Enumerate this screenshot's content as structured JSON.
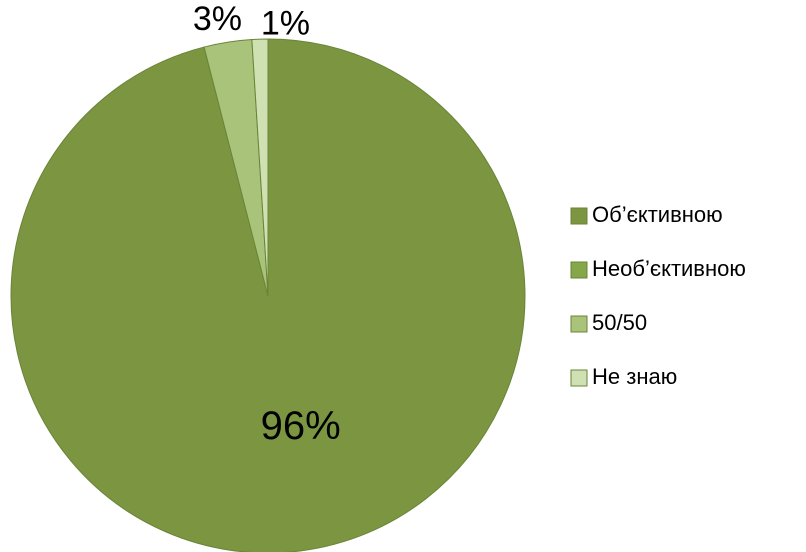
{
  "chart_data": {
    "type": "pie",
    "title": "",
    "categories": [
      "Об’єктивною",
      "Необ’єктивною",
      "50/50",
      "Не знаю"
    ],
    "values": [
      96,
      0,
      3,
      1
    ],
    "data_labels": [
      "96%",
      "",
      "3%",
      "1%"
    ],
    "colors": [
      "#7b9541",
      "#86a64a",
      "#a9c47a",
      "#cfe0b3"
    ],
    "legend_position": "right"
  }
}
